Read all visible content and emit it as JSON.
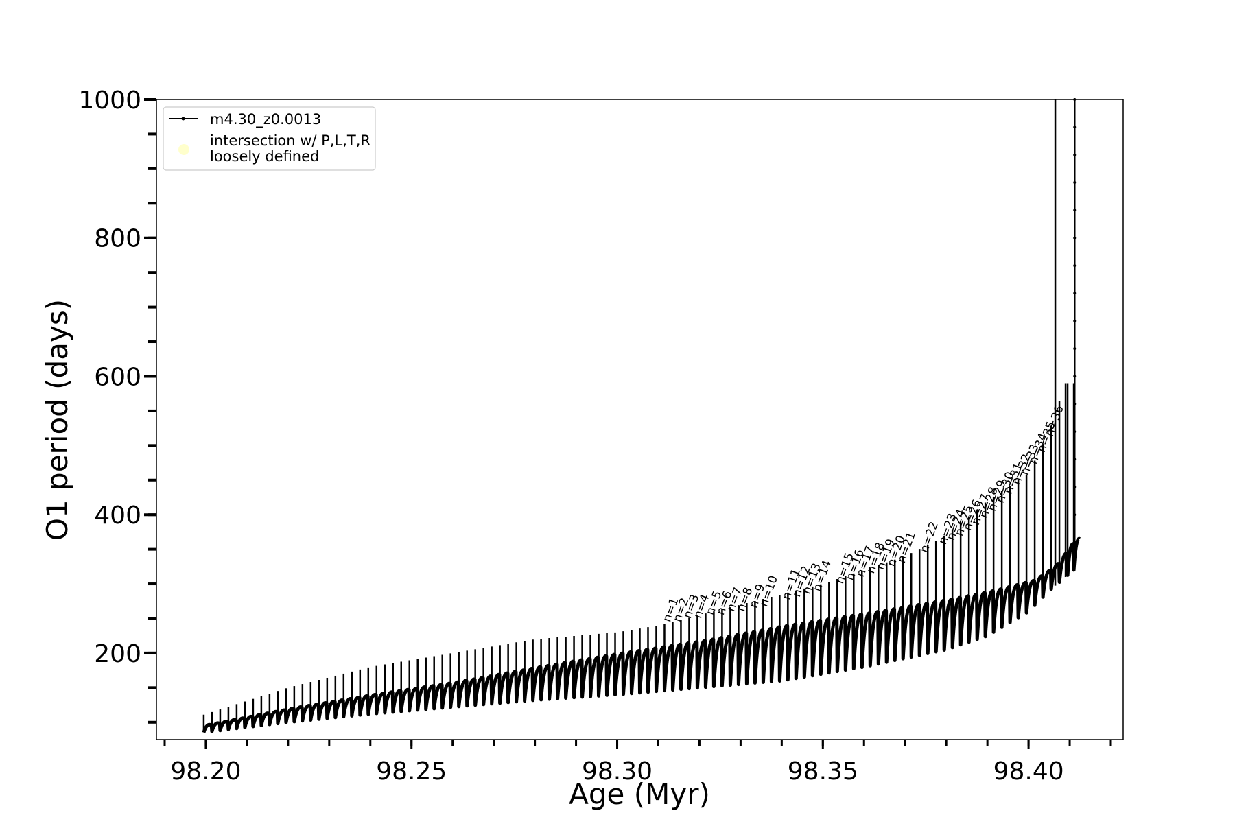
{
  "chart_data": {
    "type": "line",
    "xlabel": "Age (Myr)",
    "ylabel": "O1 period (days)",
    "xlim": [
      98.188,
      98.423
    ],
    "ylim": [
      75,
      1000
    ],
    "xticks": [
      98.2,
      98.25,
      98.3,
      98.35,
      98.4
    ],
    "xtick_labels": [
      "98.20",
      "98.25",
      "98.30",
      "98.35",
      "98.40"
    ],
    "x_minor_step": 0.01,
    "yticks": [
      200,
      400,
      600,
      800,
      1000
    ],
    "ytick_labels": [
      "200",
      "400",
      "600",
      "800",
      "1000"
    ],
    "y_minor_step": 50,
    "grid": false,
    "legend_position": "upper-left",
    "legend": [
      {
        "label": "m4.30_z0.0013",
        "marker": "line-with-dots",
        "color": "#000000"
      },
      {
        "label_line1": "intersection w/ P,L,T,R",
        "label_line2": "loosely defined",
        "marker": "circle",
        "color": "#ffffcc"
      }
    ],
    "series": [
      {
        "name": "m4.30_z0.0013",
        "color": "#000000",
        "description_of_shape": "sawtooth of thermal pulses: each cycle spikes to a peak then drops to a trough",
        "pulse_ages": [
          98.1995,
          98.2015,
          98.2035,
          98.2055,
          98.2075,
          98.2095,
          98.2115,
          98.2135,
          98.2155,
          98.2175,
          98.2195,
          98.2215,
          98.2235,
          98.2255,
          98.2275,
          98.2295,
          98.2315,
          98.2335,
          98.2355,
          98.2375,
          98.2395,
          98.2415,
          98.2435,
          98.2455,
          98.2475,
          98.2495,
          98.2515,
          98.2535,
          98.2555,
          98.2575,
          98.2595,
          98.2615,
          98.2635,
          98.2655,
          98.2675,
          98.2695,
          98.2715,
          98.2735,
          98.2755,
          98.2775,
          98.2795,
          98.2815,
          98.2835,
          98.2855,
          98.2875,
          98.2895,
          98.2915,
          98.2935,
          98.2955,
          98.2975,
          98.2995,
          98.3015,
          98.3035,
          98.3055,
          98.3075,
          98.3095,
          98.3115,
          98.3135,
          98.3155,
          98.3175,
          98.3195,
          98.3215,
          98.3235,
          98.3255,
          98.3275,
          98.3295,
          98.3315,
          98.3335,
          98.3355,
          98.3375,
          98.3395,
          98.3415,
          98.3435,
          98.3455,
          98.3475,
          98.3495,
          98.3515,
          98.3535,
          98.3555,
          98.3575,
          98.3595,
          98.3615,
          98.3635,
          98.3655,
          98.3675,
          98.3695,
          98.3715,
          98.3735,
          98.3755,
          98.3775,
          98.3795,
          98.3815,
          98.3835,
          98.3855,
          98.3875,
          98.3895,
          98.3915,
          98.3935,
          98.3955,
          98.3975,
          98.3995,
          98.4015,
          98.4035,
          98.4055,
          98.4075,
          98.4095,
          98.411
        ],
        "baseline_points": [
          [
            98.199,
            95
          ],
          [
            98.22,
            120
          ],
          [
            98.24,
            140
          ],
          [
            98.26,
            158
          ],
          [
            98.28,
            180
          ],
          [
            98.3,
            200
          ],
          [
            98.32,
            218
          ],
          [
            98.34,
            240
          ],
          [
            98.36,
            258
          ],
          [
            98.38,
            278
          ],
          [
            98.39,
            290
          ],
          [
            98.4,
            305
          ],
          [
            98.405,
            325
          ],
          [
            98.409,
            355
          ],
          [
            98.411,
            365
          ]
        ],
        "peak_points": [
          [
            98.199,
            110
          ],
          [
            98.22,
            150
          ],
          [
            98.24,
            180
          ],
          [
            98.26,
            200
          ],
          [
            98.28,
            220
          ],
          [
            98.3,
            230
          ],
          [
            98.31,
            240
          ],
          [
            98.33,
            270
          ],
          [
            98.35,
            300
          ],
          [
            98.37,
            340
          ],
          [
            98.38,
            370
          ],
          [
            98.39,
            420
          ],
          [
            98.4,
            460
          ],
          [
            98.405,
            520
          ],
          [
            98.409,
            590
          ]
        ],
        "trough_points": [
          [
            98.199,
            85
          ],
          [
            98.22,
            100
          ],
          [
            98.24,
            112
          ],
          [
            98.26,
            122
          ],
          [
            98.28,
            132
          ],
          [
            98.3,
            140
          ],
          [
            98.32,
            150
          ],
          [
            98.34,
            160
          ],
          [
            98.36,
            180
          ],
          [
            98.38,
            205
          ],
          [
            98.39,
            225
          ],
          [
            98.4,
            260
          ],
          [
            98.405,
            290
          ],
          [
            98.409,
            310
          ],
          [
            98.411,
            320
          ]
        ],
        "vertical_spikes": [
          {
            "x": 98.4065,
            "to": 1000
          },
          {
            "x": 98.409,
            "to": 590
          },
          {
            "x": 98.4112,
            "to": 1000
          }
        ]
      }
    ],
    "annotations": [
      {
        "text": "n=1",
        "x": 98.3125,
        "y": 240
      },
      {
        "text": "n=2",
        "x": 98.315,
        "y": 240
      },
      {
        "text": "n=3",
        "x": 98.3175,
        "y": 245
      },
      {
        "text": "n=4",
        "x": 98.32,
        "y": 245
      },
      {
        "text": "n=5",
        "x": 98.323,
        "y": 250
      },
      {
        "text": "n=6",
        "x": 98.3255,
        "y": 250
      },
      {
        "text": "n=7",
        "x": 98.328,
        "y": 255
      },
      {
        "text": "n=8",
        "x": 98.3305,
        "y": 255
      },
      {
        "text": "n=9",
        "x": 98.3335,
        "y": 260
      },
      {
        "text": "n=10",
        "x": 98.336,
        "y": 262
      },
      {
        "text": "n=11",
        "x": 98.3415,
        "y": 272
      },
      {
        "text": "n=12",
        "x": 98.344,
        "y": 276
      },
      {
        "text": "n=13",
        "x": 98.3465,
        "y": 280
      },
      {
        "text": "n=14",
        "x": 98.349,
        "y": 284
      },
      {
        "text": "n=15",
        "x": 98.3545,
        "y": 295
      },
      {
        "text": "n=16",
        "x": 98.357,
        "y": 300
      },
      {
        "text": "n=17",
        "x": 98.3595,
        "y": 305
      },
      {
        "text": "n=18",
        "x": 98.362,
        "y": 310
      },
      {
        "text": "n=19",
        "x": 98.3645,
        "y": 315
      },
      {
        "text": "n=20",
        "x": 98.367,
        "y": 320
      },
      {
        "text": "n=21",
        "x": 98.3695,
        "y": 325
      },
      {
        "text": "n=22",
        "x": 98.375,
        "y": 340
      },
      {
        "text": "n=23",
        "x": 98.3795,
        "y": 352
      },
      {
        "text": "n=24",
        "x": 98.3815,
        "y": 358
      },
      {
        "text": "n=25",
        "x": 98.3835,
        "y": 364
      },
      {
        "text": "n=26",
        "x": 98.3855,
        "y": 372
      },
      {
        "text": "n=27",
        "x": 98.3875,
        "y": 380
      },
      {
        "text": "n=28",
        "x": 98.3895,
        "y": 390
      },
      {
        "text": "n=29",
        "x": 98.3915,
        "y": 400
      },
      {
        "text": "n=30",
        "x": 98.3935,
        "y": 412
      },
      {
        "text": "n=31",
        "x": 98.3955,
        "y": 425
      },
      {
        "text": "n=32",
        "x": 98.3975,
        "y": 438
      },
      {
        "text": "n=33",
        "x": 98.3995,
        "y": 452
      },
      {
        "text": "n=34",
        "x": 98.4015,
        "y": 468
      },
      {
        "text": "n=35",
        "x": 98.4035,
        "y": 485
      },
      {
        "text": "n=36",
        "x": 98.4055,
        "y": 508
      }
    ]
  }
}
